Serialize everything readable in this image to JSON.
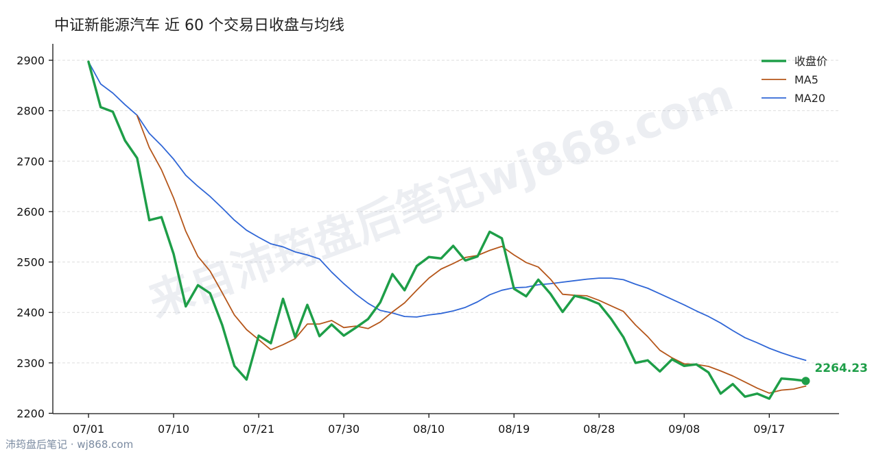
{
  "chart_data": {
    "type": "line",
    "title": "中证新能源汽车 近 60 个交易日收盘与均线",
    "xlabel": "",
    "ylabel": "",
    "ylim": [
      2200,
      2920
    ],
    "yticks": [
      2200,
      2300,
      2400,
      2500,
      2600,
      2700,
      2800,
      2900
    ],
    "xticks": [
      {
        "index": 0,
        "label": "07/01"
      },
      {
        "index": 7,
        "label": "07/10"
      },
      {
        "index": 14,
        "label": "07/21"
      },
      {
        "index": 21,
        "label": "07/30"
      },
      {
        "index": 28,
        "label": "08/10"
      },
      {
        "index": 35,
        "label": "08/19"
      },
      {
        "index": 42,
        "label": "08/28"
      },
      {
        "index": 49,
        "label": "09/08"
      },
      {
        "index": 56,
        "label": "09/17"
      }
    ],
    "grid": "horizontal",
    "legend_position": "top-right",
    "series": [
      {
        "name": "收盘价",
        "color": "#1e9e48",
        "values": [
          2897,
          2807,
          2798,
          2741,
          2706,
          2583,
          2589,
          2516,
          2412,
          2454,
          2438,
          2375,
          2294,
          2267,
          2354,
          2339,
          2427,
          2351,
          2415,
          2353,
          2376,
          2354,
          2370,
          2387,
          2420,
          2476,
          2444,
          2492,
          2510,
          2507,
          2532,
          2503,
          2511,
          2560,
          2547,
          2447,
          2432,
          2465,
          2437,
          2401,
          2433,
          2427,
          2417,
          2387,
          2351,
          2300,
          2305,
          2283,
          2307,
          2294,
          2297,
          2281,
          2239,
          2258,
          2233,
          2239,
          2229,
          2269,
          2267,
          2264.23
        ]
      },
      {
        "name": "MA5",
        "color": "#b5561a",
        "values": [
          null,
          null,
          null,
          null,
          2790,
          2727,
          2683,
          2627,
          2561,
          2511,
          2482,
          2439,
          2395,
          2366,
          2346,
          2326,
          2336,
          2348,
          2377,
          2377,
          2384,
          2370,
          2373,
          2368,
          2381,
          2401,
          2419,
          2444,
          2468,
          2486,
          2497,
          2509,
          2513,
          2523,
          2531,
          2514,
          2499,
          2490,
          2466,
          2436,
          2434,
          2433,
          2424,
          2413,
          2402,
          2375,
          2352,
          2325,
          2310,
          2298,
          2297,
          2293,
          2284,
          2274,
          2262,
          2250,
          2240,
          2246,
          2248,
          2254
        ]
      },
      {
        "name": "MA20",
        "color": "#2f66d6",
        "values": [
          2897,
          2853,
          2835,
          2812,
          2791,
          2755,
          2731,
          2704,
          2672,
          2650,
          2630,
          2607,
          2583,
          2563,
          2549,
          2536,
          2530,
          2520,
          2514,
          2506,
          2480,
          2457,
          2436,
          2418,
          2404,
          2399,
          2392,
          2391,
          2395,
          2398,
          2403,
          2410,
          2421,
          2435,
          2444,
          2449,
          2450,
          2455,
          2457,
          2460,
          2463,
          2466,
          2468,
          2468,
          2465,
          2456,
          2448,
          2437,
          2426,
          2415,
          2403,
          2392,
          2379,
          2364,
          2350,
          2340,
          2329,
          2320,
          2312,
          2305
        ]
      }
    ],
    "last_value_label": "2264.23"
  },
  "watermark": "来自沛筠盘后笔记wj868.com",
  "footer": "沛筠盘后笔记 · wj868.com"
}
